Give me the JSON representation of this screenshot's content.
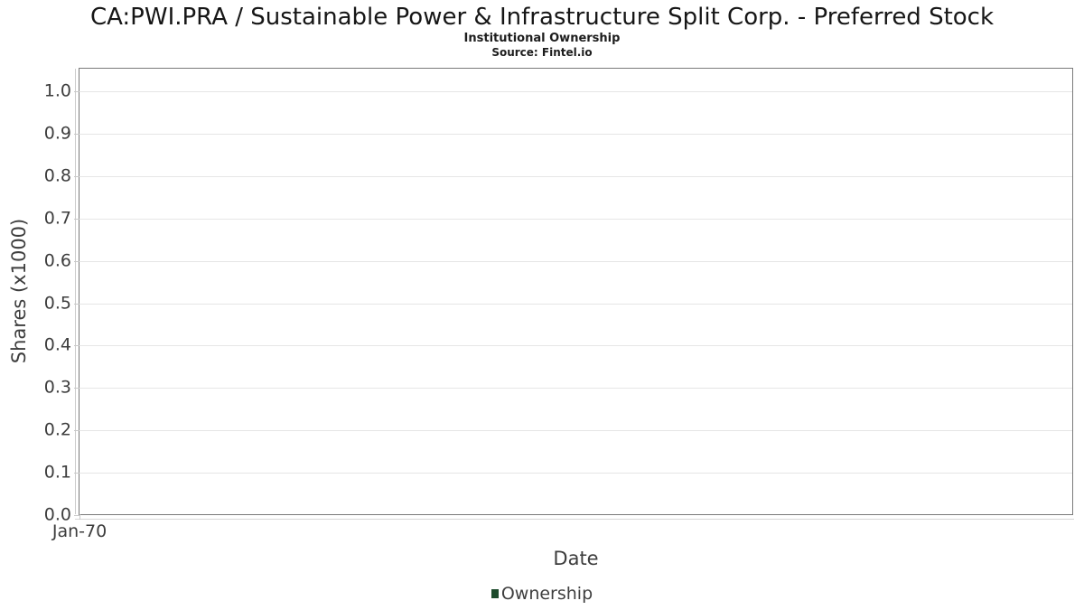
{
  "header": {
    "title": "CA:PWI.PRA / Sustainable Power & Infrastructure Split Corp. - Preferred Stock",
    "subtitle": "Institutional Ownership",
    "source": "Source: Fintel.io"
  },
  "chart_data": {
    "type": "line",
    "title": "CA:PWI.PRA / Sustainable Power & Infrastructure Split Corp. - Preferred Stock",
    "subtitle": "Institutional Ownership",
    "source": "Source: Fintel.io",
    "xlabel": "Date",
    "ylabel": "Shares (x1000)",
    "x_tick_labels": [
      "Jan-70"
    ],
    "y_tick_labels": [
      "1.0",
      "0.9",
      "0.8",
      "0.7",
      "0.6",
      "0.5",
      "0.4",
      "0.3",
      "0.2",
      "0.1",
      "0.0"
    ],
    "ylim": [
      0.0,
      1.05
    ],
    "grid": true,
    "legend": {
      "position": "bottom",
      "entries": [
        {
          "label": "Ownership",
          "color": "#1d4b2c"
        }
      ]
    },
    "series": [
      {
        "name": "Ownership",
        "x": [],
        "values": []
      }
    ]
  },
  "colors": {
    "accent_green": "#1d4b2c",
    "plot_border": "#7a7a7a",
    "grid": "#e6e6e6",
    "axis_light": "#cccccc",
    "text": "#3d3d3d",
    "background": "#ffffff"
  }
}
